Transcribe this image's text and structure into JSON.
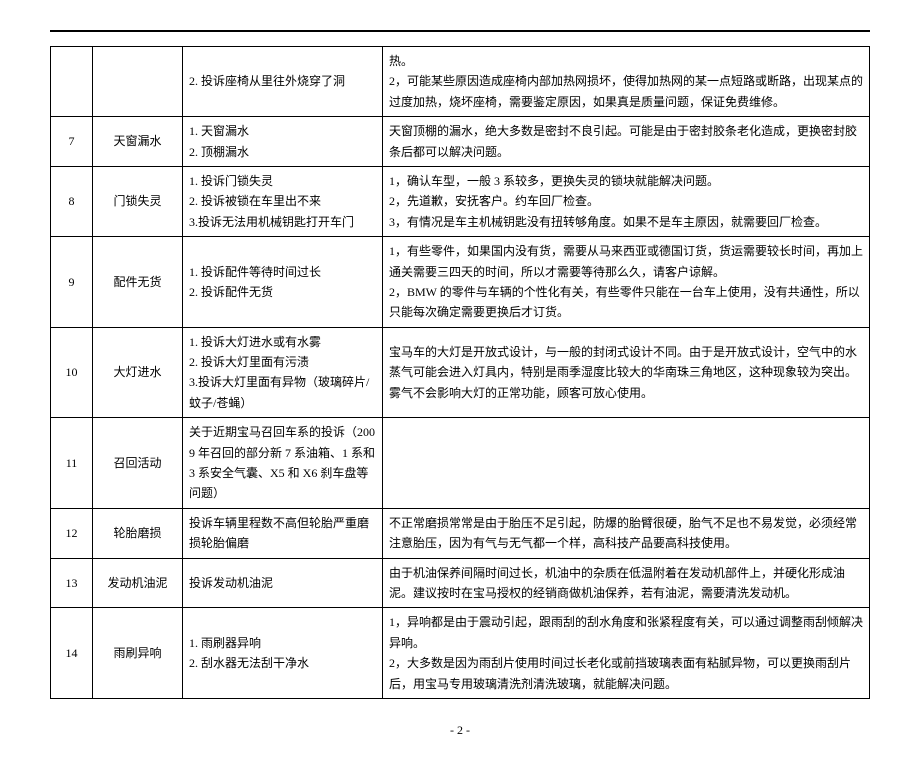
{
  "rows": [
    {
      "num": "",
      "topic": "",
      "complaint": "2. 投诉座椅从里往外烧穿了洞",
      "response": "热。\n2，可能某些原因造成座椅内部加热网损坏，使得加热网的某一点短路或断路，出现某点的过度加热，烧坏座椅，需要鉴定原因，如果真是质量问题，保证免费维修。"
    },
    {
      "num": "7",
      "topic": "天窗漏水",
      "complaint": "1. 天窗漏水\n2. 顶棚漏水",
      "response": "天窗顶棚的漏水，绝大多数是密封不良引起。可能是由于密封胶条老化造成，更换密封胶条后都可以解决问题。"
    },
    {
      "num": "8",
      "topic": "门锁失灵",
      "complaint": "1. 投诉门锁失灵\n2. 投诉被锁在车里出不来\n3.投诉无法用机械钥匙打开车门",
      "response": "1，确认车型，一般 3 系较多，更换失灵的锁块就能解决问题。\n2，先道歉，安抚客户。约车回厂检查。\n3，有情况是车主机械钥匙没有扭转够角度。如果不是车主原因，就需要回厂检查。"
    },
    {
      "num": "9",
      "topic": "配件无货",
      "complaint": "1. 投诉配件等待时间过长\n2. 投诉配件无货",
      "response": "1，有些零件，如果国内没有货，需要从马来西亚或德国订货，货运需要较长时间，再加上通关需要三四天的时间，所以才需要等待那么久，请客户谅解。\n2，BMW 的零件与车辆的个性化有关，有些零件只能在一台车上使用，没有共通性，所以只能每次确定需要更换后才订货。"
    },
    {
      "num": "10",
      "topic": "大灯进水",
      "complaint": "1. 投诉大灯进水或有水雾\n2. 投诉大灯里面有污渍\n3.投诉大灯里面有异物（玻璃碎片/蚊子/苍蝇）",
      "response": "宝马车的大灯是开放式设计，与一般的封闭式设计不同。由于是开放式设计，空气中的水蒸气可能会进入灯具内，特别是雨季湿度比较大的华南珠三角地区，这种现象较为突出。雾气不会影响大灯的正常功能，顾客可放心使用。"
    },
    {
      "num": "11",
      "topic": "召回活动",
      "complaint": "关于近期宝马召回车系的投诉（2009 年召回的部分新 7 系油箱、1 系和 3 系安全气囊、X5 和 X6 刹车盘等问题）",
      "response": ""
    },
    {
      "num": "12",
      "topic": "轮胎磨损",
      "complaint": "投诉车辆里程数不高但轮胎严重磨损轮胎偏磨",
      "response": "不正常磨损常常是由于胎压不足引起，防爆的胎臂很硬，胎气不足也不易发觉，必须经常注意胎压，因为有气与无气都一个样，高科技产品要高科技使用。"
    },
    {
      "num": "13",
      "topic": "发动机油泥",
      "complaint": "投诉发动机油泥",
      "response": "由于机油保养间隔时间过长，机油中的杂质在低温附着在发动机部件上，并硬化形成油泥。建议按时在宝马授权的经销商做机油保养，若有油泥，需要清洗发动机。"
    },
    {
      "num": "14",
      "topic": "雨刷异响",
      "complaint": "1. 雨刷器异响\n2. 刮水器无法刮干净水",
      "response": "1，异响都是由于震动引起，跟雨刮的刮水角度和张紧程度有关，可以通过调整雨刮倾解决异响。\n2，大多数是因为雨刮片使用时间过长老化或前挡玻璃表面有粘腻异物，可以更换雨刮片后，用宝马专用玻璃清洗剂清洗玻璃，就能解决问题。"
    }
  ],
  "page_number": "- 2 -"
}
